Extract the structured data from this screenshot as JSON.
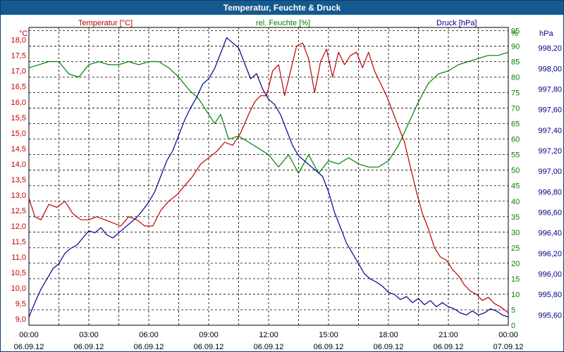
{
  "chart_data": {
    "type": "line",
    "title": "Temperatur, Feuchte & Druck",
    "colors": {
      "temperature": "#c00000",
      "humidity": "#008000",
      "pressure": "#00008b",
      "grid": "#000000"
    },
    "grid": true,
    "axes": {
      "temperature": {
        "unit": "°C",
        "label": "Temperatur [°C]",
        "range": [
          8.8,
          18.4
        ],
        "ticks": [
          "9,0",
          "9,5",
          "10,0",
          "10,5",
          "11,0",
          "11,5",
          "12,0",
          "12,5",
          "13,0",
          "13,5",
          "14,0",
          "14,5",
          "15,0",
          "15,5",
          "16,0",
          "16,5",
          "17,0",
          "17,5",
          "18,0"
        ]
      },
      "humidity": {
        "unit": "%",
        "label": "rel. Feuchte [%]",
        "range": [
          0,
          96
        ],
        "ticks": [
          "0",
          "5",
          "10",
          "15",
          "20",
          "25",
          "30",
          "35",
          "40",
          "45",
          "50",
          "55",
          "60",
          "65",
          "70",
          "75",
          "80",
          "85",
          "90",
          "95"
        ]
      },
      "pressure": {
        "unit": "hPa",
        "label": "Druck [hPa]",
        "range": [
          995.5,
          998.4
        ],
        "ticks": [
          "995,60",
          "995,80",
          "996,00",
          "996,20",
          "996,40",
          "996,60",
          "996,80",
          "997,00",
          "997,20",
          "997,40",
          "997,60",
          "997,80",
          "998,00",
          "998,20"
        ]
      }
    },
    "x_ticks": [
      {
        "time": "00:00",
        "date": "06.09.12"
      },
      {
        "time": "03:00",
        "date": "06.09.12"
      },
      {
        "time": "06:00",
        "date": "06.09.12"
      },
      {
        "time": "09:00",
        "date": "06.09.12"
      },
      {
        "time": "12:00",
        "date": "06.09.12"
      },
      {
        "time": "15:00",
        "date": "06.09.12"
      },
      {
        "time": "18:00",
        "date": "06.09.12"
      },
      {
        "time": "21:00",
        "date": "06.09.12"
      },
      {
        "time": "00:00",
        "date": "07.09.12"
      }
    ],
    "x_range_hours": [
      0,
      24
    ],
    "series": [
      {
        "name": "Temperatur [°C]",
        "axis": "temperature",
        "x": [
          0,
          0.3,
          0.6,
          1.0,
          1.4,
          1.8,
          2.2,
          2.6,
          3.0,
          3.4,
          3.8,
          4.2,
          4.6,
          5.0,
          5.4,
          5.8,
          6.2,
          6.6,
          7.0,
          7.4,
          7.8,
          8.2,
          8.6,
          9.0,
          9.4,
          9.8,
          10.2,
          10.6,
          11.0,
          11.3,
          11.6,
          11.9,
          12.2,
          12.5,
          12.8,
          13.1,
          13.4,
          13.7,
          14.0,
          14.3,
          14.6,
          14.9,
          15.2,
          15.5,
          15.8,
          16.1,
          16.4,
          16.7,
          17.0,
          17.3,
          17.6,
          17.9,
          18.2,
          18.5,
          18.8,
          19.1,
          19.4,
          19.7,
          20.0,
          20.3,
          20.6,
          20.9,
          21.2,
          21.5,
          21.8,
          22.1,
          22.4,
          22.7,
          23.0,
          23.3,
          23.6,
          23.8,
          24.0
        ],
        "values": [
          12.9,
          12.3,
          12.2,
          12.7,
          12.6,
          12.8,
          12.4,
          12.2,
          12.2,
          12.3,
          12.2,
          12.1,
          12.0,
          12.3,
          12.2,
          12.0,
          12.0,
          12.5,
          12.8,
          13.0,
          13.3,
          13.6,
          14.0,
          14.2,
          14.4,
          14.7,
          14.6,
          15.0,
          15.6,
          16.0,
          16.2,
          16.2,
          17.0,
          17.2,
          16.2,
          17.0,
          17.8,
          17.9,
          17.4,
          16.3,
          17.3,
          17.7,
          16.8,
          17.6,
          17.2,
          17.5,
          17.6,
          17.1,
          17.6,
          17.0,
          16.6,
          16.2,
          15.7,
          15.2,
          14.7,
          13.9,
          13.1,
          12.4,
          11.9,
          11.3,
          11.0,
          10.9,
          10.6,
          10.4,
          10.1,
          9.9,
          9.8,
          9.6,
          9.7,
          9.5,
          9.4,
          9.3,
          9.2
        ]
      },
      {
        "name": "rel. Feuchte [%]",
        "axis": "humidity",
        "x": [
          0,
          0.5,
          1.0,
          1.5,
          2.0,
          2.5,
          3.0,
          3.5,
          4.0,
          4.5,
          5.0,
          5.5,
          6.0,
          6.5,
          7.0,
          7.5,
          8.0,
          8.5,
          9.0,
          9.3,
          9.6,
          10.0,
          10.5,
          11.0,
          11.5,
          12.0,
          12.5,
          13.0,
          13.5,
          14.0,
          14.5,
          15.0,
          15.5,
          16.0,
          16.5,
          17.0,
          17.5,
          18.0,
          18.5,
          19.0,
          19.5,
          20.0,
          20.5,
          21.0,
          21.5,
          22.0,
          22.5,
          23.0,
          23.5,
          24.0
        ],
        "values": [
          83,
          84,
          85,
          85,
          81,
          80,
          84,
          85,
          84,
          84,
          85,
          84,
          85,
          85,
          83,
          80,
          76,
          73,
          68,
          65,
          68,
          60,
          61,
          59,
          57,
          55,
          51,
          55,
          49,
          55,
          49,
          53,
          52,
          54,
          52,
          51,
          51,
          53,
          58,
          65,
          72,
          78,
          81,
          82,
          84,
          85,
          86,
          87,
          87,
          88
        ]
      },
      {
        "name": "Druck [hPa]",
        "axis": "pressure",
        "x": [
          0,
          0.3,
          0.6,
          0.9,
          1.2,
          1.5,
          1.8,
          2.1,
          2.4,
          2.7,
          3.0,
          3.3,
          3.6,
          3.9,
          4.2,
          4.5,
          4.8,
          5.1,
          5.4,
          5.7,
          6.0,
          6.3,
          6.6,
          6.9,
          7.2,
          7.5,
          7.8,
          8.1,
          8.4,
          8.7,
          9.0,
          9.3,
          9.6,
          9.9,
          10.2,
          10.5,
          10.8,
          11.1,
          11.4,
          11.7,
          12.0,
          12.3,
          12.6,
          12.9,
          13.2,
          13.5,
          13.8,
          14.1,
          14.4,
          14.7,
          15.0,
          15.3,
          15.6,
          15.9,
          16.2,
          16.5,
          16.8,
          17.1,
          17.4,
          17.7,
          18.0,
          18.3,
          18.6,
          18.9,
          19.2,
          19.5,
          19.8,
          20.1,
          20.4,
          20.7,
          21.0,
          21.3,
          21.6,
          21.9,
          22.2,
          22.5,
          22.8,
          23.1,
          23.4,
          23.7,
          24.0
        ],
        "values": [
          995.58,
          995.72,
          995.85,
          995.95,
          996.05,
          996.1,
          996.2,
          996.25,
          996.28,
          996.35,
          996.42,
          996.4,
          996.45,
          996.38,
          996.35,
          996.4,
          996.45,
          996.5,
          996.55,
          996.62,
          996.7,
          996.8,
          996.95,
          997.1,
          997.2,
          997.35,
          997.5,
          997.62,
          997.72,
          997.85,
          997.9,
          998.0,
          998.15,
          998.3,
          998.25,
          998.2,
          998.05,
          997.9,
          997.95,
          997.8,
          997.7,
          997.65,
          997.55,
          997.4,
          997.25,
          997.15,
          997.1,
          997.05,
          997.0,
          996.95,
          996.8,
          996.6,
          996.45,
          996.3,
          996.2,
          996.1,
          996.0,
          995.95,
          995.92,
          995.88,
          995.82,
          995.8,
          995.75,
          995.78,
          995.72,
          995.76,
          995.7,
          995.74,
          995.68,
          995.72,
          995.68,
          995.66,
          995.62,
          995.6,
          995.64,
          995.6,
          995.62,
          995.66,
          995.64,
          995.6,
          995.58
        ]
      }
    ]
  }
}
